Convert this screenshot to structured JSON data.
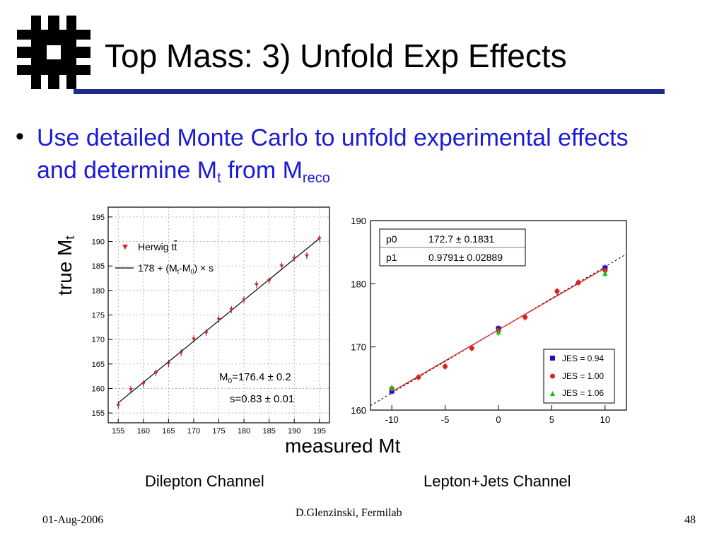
{
  "slide": {
    "title": "Top Mass: 3) Unfold Exp Effects",
    "bullet_main": "Use detailed Monte Carlo to unfold experimental effects and determine M",
    "bullet_sub_t": "t",
    "bullet_from": " from M",
    "bullet_sub_reco": "reco",
    "y_axis_label": "true M",
    "y_axis_sub": "t",
    "x_axis_label": "measured Mt",
    "caption_left": "Dilepton Channel",
    "caption_right": "Lepton+Jets Channel",
    "footer_date": "01-Aug-2006",
    "footer_author": "D.Glenzinski, Fermilab",
    "footer_page": "48"
  },
  "colors": {
    "title_rule": "#1f2a8a",
    "bullet_text": "#1b1bd6",
    "logo": "#000000"
  },
  "chart_data": [
    {
      "type": "scatter",
      "xlim": [
        153,
        197
      ],
      "ylim": [
        153,
        197
      ],
      "xticks": [
        155,
        160,
        165,
        170,
        175,
        180,
        185,
        190,
        195
      ],
      "yticks": [
        155,
        160,
        165,
        170,
        175,
        180,
        185,
        190,
        195
      ],
      "grid": true,
      "legend": {
        "placement": "top-left",
        "marker_label": "Herwig t",
        "marker_label_bar": "t",
        "line_label": "178 + (M",
        "line_label_sub1": "t",
        "line_label_mid": "-M",
        "line_label_sub2": "0",
        "line_label_end": ") × s"
      },
      "annotations": {
        "m0_prefix": "M",
        "m0_sub": "0",
        "m0_value": "=176.4 ± 0.2",
        "s_text": "s=0.83 ± 0.01"
      },
      "fit": {
        "M0": 176.4,
        "s": 0.83,
        "intercept": 178
      },
      "series": [
        {
          "marker": "red-triangle-down",
          "x": [
            155,
            157.5,
            160,
            162.5,
            165,
            167.5,
            170,
            172.5,
            175,
            177.5,
            180,
            182.5,
            185,
            187.5,
            190,
            192.5,
            195
          ],
          "y": [
            156.6,
            159.8,
            161.0,
            163.2,
            165.1,
            167.3,
            170.1,
            171.4,
            174.1,
            176.1,
            178.1,
            181.2,
            182.0,
            185.0,
            186.6,
            187.1,
            190.6
          ]
        }
      ]
    },
    {
      "type": "scatter",
      "xlim": [
        -12,
        12
      ],
      "ylim": [
        160,
        190
      ],
      "xticks": [
        -10,
        -5,
        0,
        5,
        10
      ],
      "yticks": [
        160,
        170,
        180,
        190
      ],
      "grid": false,
      "legend": {
        "placement": "bottom-right"
      },
      "fitbox": {
        "placement": "top-left",
        "p0_label": "p0",
        "p0_value": "172.7 ± 0.1831",
        "p1_label": "p1",
        "p1_value": "0.9791± 0.02889"
      },
      "fit": {
        "p0": 172.7,
        "p1": 0.9791
      },
      "series": [
        {
          "name": "JES = 0.94",
          "color": "#1010d0",
          "marker": "square",
          "x": [
            -10,
            0,
            10
          ],
          "y": [
            163.0,
            172.9,
            182.5
          ]
        },
        {
          "name": "JES = 1.00",
          "color": "#e02020",
          "marker": "circle",
          "x": [
            -10,
            -7.5,
            -5,
            -2.5,
            0,
            2.5,
            5.5,
            7.5,
            10
          ],
          "y": [
            163.4,
            165.2,
            166.9,
            169.8,
            172.6,
            174.7,
            178.8,
            180.2,
            182.1
          ]
        },
        {
          "name": "JES = 1.06",
          "color": "#10c010",
          "marker": "triangle-up",
          "x": [
            -10,
            0,
            10
          ],
          "y": [
            163.5,
            172.3,
            181.6
          ]
        }
      ]
    }
  ]
}
